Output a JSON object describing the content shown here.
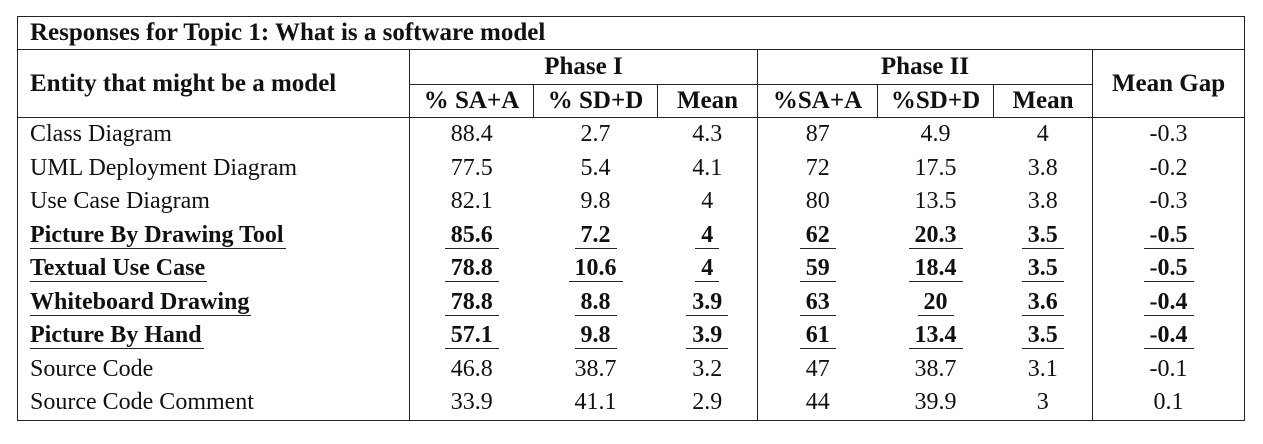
{
  "table": {
    "caption": "Responses for Topic 1: What is a software model",
    "entity_header": "Entity that might be a model",
    "phase1_header": "Phase I",
    "phase2_header": "Phase II",
    "gap_header": "Mean Gap",
    "phase1_subheaders": [
      "% SA+A",
      "% SD+D",
      "Mean"
    ],
    "phase2_subheaders": [
      "%SA+A",
      "%SD+D",
      "Mean"
    ],
    "rows": [
      {
        "label": "Class Diagram",
        "p1_sa": "88.4",
        "p1_sd": "2.7",
        "p1_mean": "4.3",
        "p2_sa": "87",
        "p2_sd": "4.9",
        "p2_mean": "4",
        "gap": "-0.3",
        "emphasized": false
      },
      {
        "label": "UML Deployment Diagram",
        "p1_sa": "77.5",
        "p1_sd": "5.4",
        "p1_mean": "4.1",
        "p2_sa": "72",
        "p2_sd": "17.5",
        "p2_mean": "3.8",
        "gap": "-0.2",
        "emphasized": false
      },
      {
        "label": "Use Case Diagram",
        "p1_sa": "82.1",
        "p1_sd": "9.8",
        "p1_mean": "4",
        "p2_sa": "80",
        "p2_sd": "13.5",
        "p2_mean": "3.8",
        "gap": "-0.3",
        "emphasized": false
      },
      {
        "label": "Picture By Drawing Tool",
        "p1_sa": "85.6",
        "p1_sd": "7.2",
        "p1_mean": "4",
        "p2_sa": "62",
        "p2_sd": "20.3",
        "p2_mean": "3.5",
        "gap": "-0.5",
        "emphasized": true
      },
      {
        "label": "Textual Use Case",
        "p1_sa": "78.8",
        "p1_sd": "10.6",
        "p1_mean": "4",
        "p2_sa": "59",
        "p2_sd": "18.4",
        "p2_mean": "3.5",
        "gap": "-0.5",
        "emphasized": true
      },
      {
        "label": "Whiteboard Drawing",
        "p1_sa": "78.8",
        "p1_sd": "8.8",
        "p1_mean": "3.9",
        "p2_sa": "63",
        "p2_sd": "20",
        "p2_mean": "3.6",
        "gap": "-0.4",
        "emphasized": true
      },
      {
        "label": "Picture By Hand",
        "p1_sa": "57.1",
        "p1_sd": "9.8",
        "p1_mean": "3.9",
        "p2_sa": "61",
        "p2_sd": "13.4",
        "p2_mean": "3.5",
        "gap": "-0.4",
        "emphasized": true
      },
      {
        "label": "Source Code",
        "p1_sa": "46.8",
        "p1_sd": "38.7",
        "p1_mean": "3.2",
        "p2_sa": "47",
        "p2_sd": "38.7",
        "p2_mean": "3.1",
        "gap": "-0.1",
        "emphasized": false
      },
      {
        "label": "Source Code Comment",
        "p1_sa": "33.9",
        "p1_sd": "41.1",
        "p1_mean": "2.9",
        "p2_sa": "44",
        "p2_sd": "39.9",
        "p2_mean": "3",
        "gap": "0.1",
        "emphasized": false
      }
    ]
  }
}
